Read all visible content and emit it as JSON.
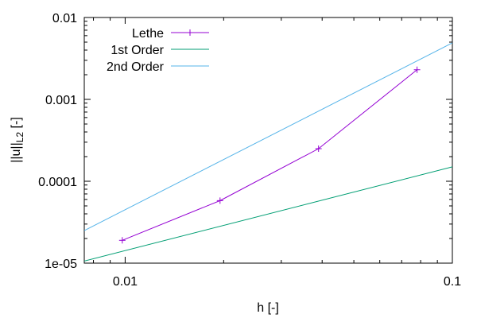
{
  "chart_data": {
    "type": "line",
    "xscale": "log",
    "yscale": "log",
    "xlim": [
      0.0075,
      0.1
    ],
    "ylim": [
      1e-05,
      0.01
    ],
    "x_ticks": [
      {
        "value": 0.01,
        "label": "0.01"
      },
      {
        "value": 0.1,
        "label": "0.1"
      }
    ],
    "y_ticks": [
      {
        "value": 1e-05,
        "label": "1e-05"
      },
      {
        "value": 0.0001,
        "label": "0.0001"
      },
      {
        "value": 0.001,
        "label": "0.001"
      },
      {
        "value": 0.01,
        "label": "0.01"
      }
    ],
    "xlabel": "h [-]",
    "ylabel": "||u||",
    "ylabel_sub": "L2",
    "ylabel_suffix": " [-]",
    "grid": false,
    "legend_position": "top-left",
    "series": [
      {
        "name": "Lethe",
        "color": "#9400d3",
        "marker": "plus",
        "x": [
          0.0098,
          0.0195,
          0.039,
          0.078
        ],
        "y": [
          1.9e-05,
          5.8e-05,
          0.00025,
          0.0023
        ]
      },
      {
        "name": "1st Order",
        "color": "#009e73",
        "marker": "none",
        "x": [
          0.0075,
          0.1
        ],
        "y": [
          1.06e-05,
          0.00015
        ]
      },
      {
        "name": "2nd Order",
        "color": "#56b4e9",
        "marker": "none",
        "x": [
          0.0075,
          0.1
        ],
        "y": [
          2.5e-05,
          0.0049
        ]
      }
    ]
  }
}
